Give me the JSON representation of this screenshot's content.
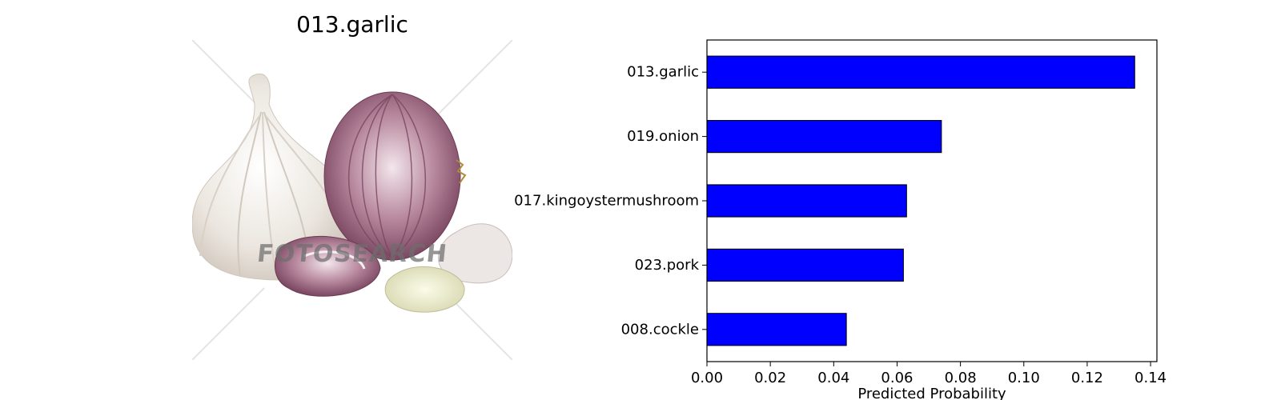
{
  "image_panel": {
    "title": "013.garlic",
    "watermark": "FOTOSEARCH"
  },
  "colors": {
    "bar_fill": "#0000ff",
    "bar_edge": "#000000"
  },
  "chart_data": {
    "type": "bar",
    "orientation": "horizontal",
    "title": "",
    "xlabel": "Predicted Probability",
    "ylabel": "",
    "categories": [
      "013.garlic",
      "019.onion",
      "017.kingoystermushroom",
      "023.pork",
      "008.cockle"
    ],
    "values": [
      0.135,
      0.074,
      0.063,
      0.062,
      0.044
    ],
    "xlim": [
      0,
      0.142
    ],
    "xticks": [
      "0.00",
      "0.02",
      "0.04",
      "0.06",
      "0.08",
      "0.10",
      "0.12",
      "0.14"
    ],
    "xtick_values": [
      0,
      0.02,
      0.04,
      0.06,
      0.08,
      0.1,
      0.12,
      0.14
    ],
    "grid": false,
    "legend": "none"
  }
}
